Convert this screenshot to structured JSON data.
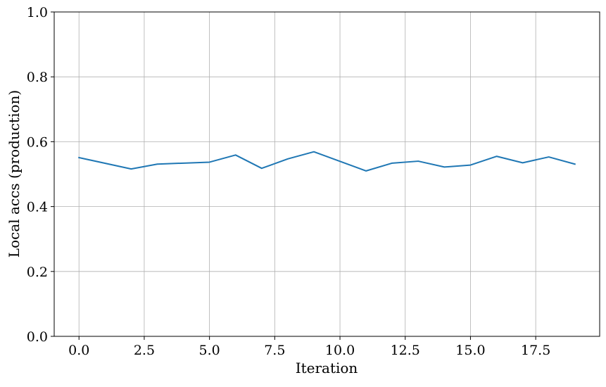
{
  "chart_data": {
    "type": "line",
    "title": "",
    "xlabel": "Iteration",
    "ylabel": "Local accs (production)",
    "xlim": [
      -0.95,
      19.95
    ],
    "ylim": [
      0.0,
      1.0
    ],
    "grid": true,
    "xticks": [
      0.0,
      2.5,
      5.0,
      7.5,
      10.0,
      12.5,
      15.0,
      17.5
    ],
    "xtick_labels": [
      "0.0",
      "2.5",
      "5.0",
      "7.5",
      "10.0",
      "12.5",
      "15.0",
      "17.5"
    ],
    "yticks": [
      0.0,
      0.2,
      0.4,
      0.6,
      0.8,
      1.0
    ],
    "ytick_labels": [
      "0.0",
      "0.2",
      "0.4",
      "0.6",
      "0.8",
      "1.0"
    ],
    "series": [
      {
        "color": "#1f77b4",
        "x": [
          0,
          2,
          3,
          5,
          6,
          7,
          8,
          9,
          11,
          12,
          13,
          14,
          15,
          16,
          17,
          18,
          19
        ],
        "y": [
          0.551,
          0.516,
          0.531,
          0.537,
          0.559,
          0.518,
          0.547,
          0.569,
          0.51,
          0.534,
          0.54,
          0.522,
          0.528,
          0.555,
          0.535,
          0.553,
          0.531
        ]
      }
    ]
  }
}
